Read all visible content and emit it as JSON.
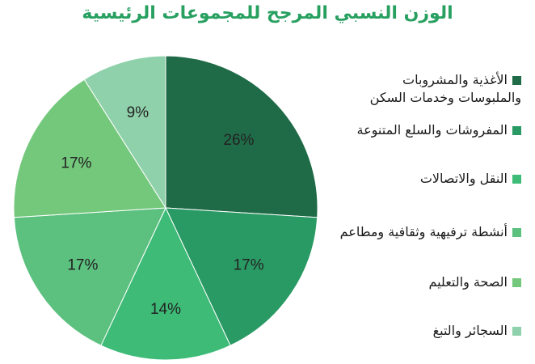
{
  "chart_data": {
    "type": "pie",
    "title": "الوزن النسبي المرجح للمجموعات الرئيسية",
    "slices": [
      {
        "label": "الأغذية والمشروبات والملبوسات وخدمات السكن",
        "value": 26,
        "value_label": "26%",
        "color": "#1f6b47"
      },
      {
        "label": "المفروشات والسلع المتنوعة",
        "value": 17,
        "value_label": "17%",
        "color": "#2a9a64"
      },
      {
        "label": "النقل والاتصالات",
        "value": 14,
        "value_label": "14%",
        "color": "#3dbb77"
      },
      {
        "label": "أنشطة ترفيهية وثقافية ومطاعم",
        "value": 17,
        "value_label": "17%",
        "color": "#5cc07f"
      },
      {
        "label": "الصحة والتعليم",
        "value": 17,
        "value_label": "17%",
        "color": "#74c87c"
      },
      {
        "label": "السجائر والتبغ",
        "value": 9,
        "value_label": "9%",
        "color": "#8fd1aa"
      }
    ],
    "legend_position": "right"
  }
}
